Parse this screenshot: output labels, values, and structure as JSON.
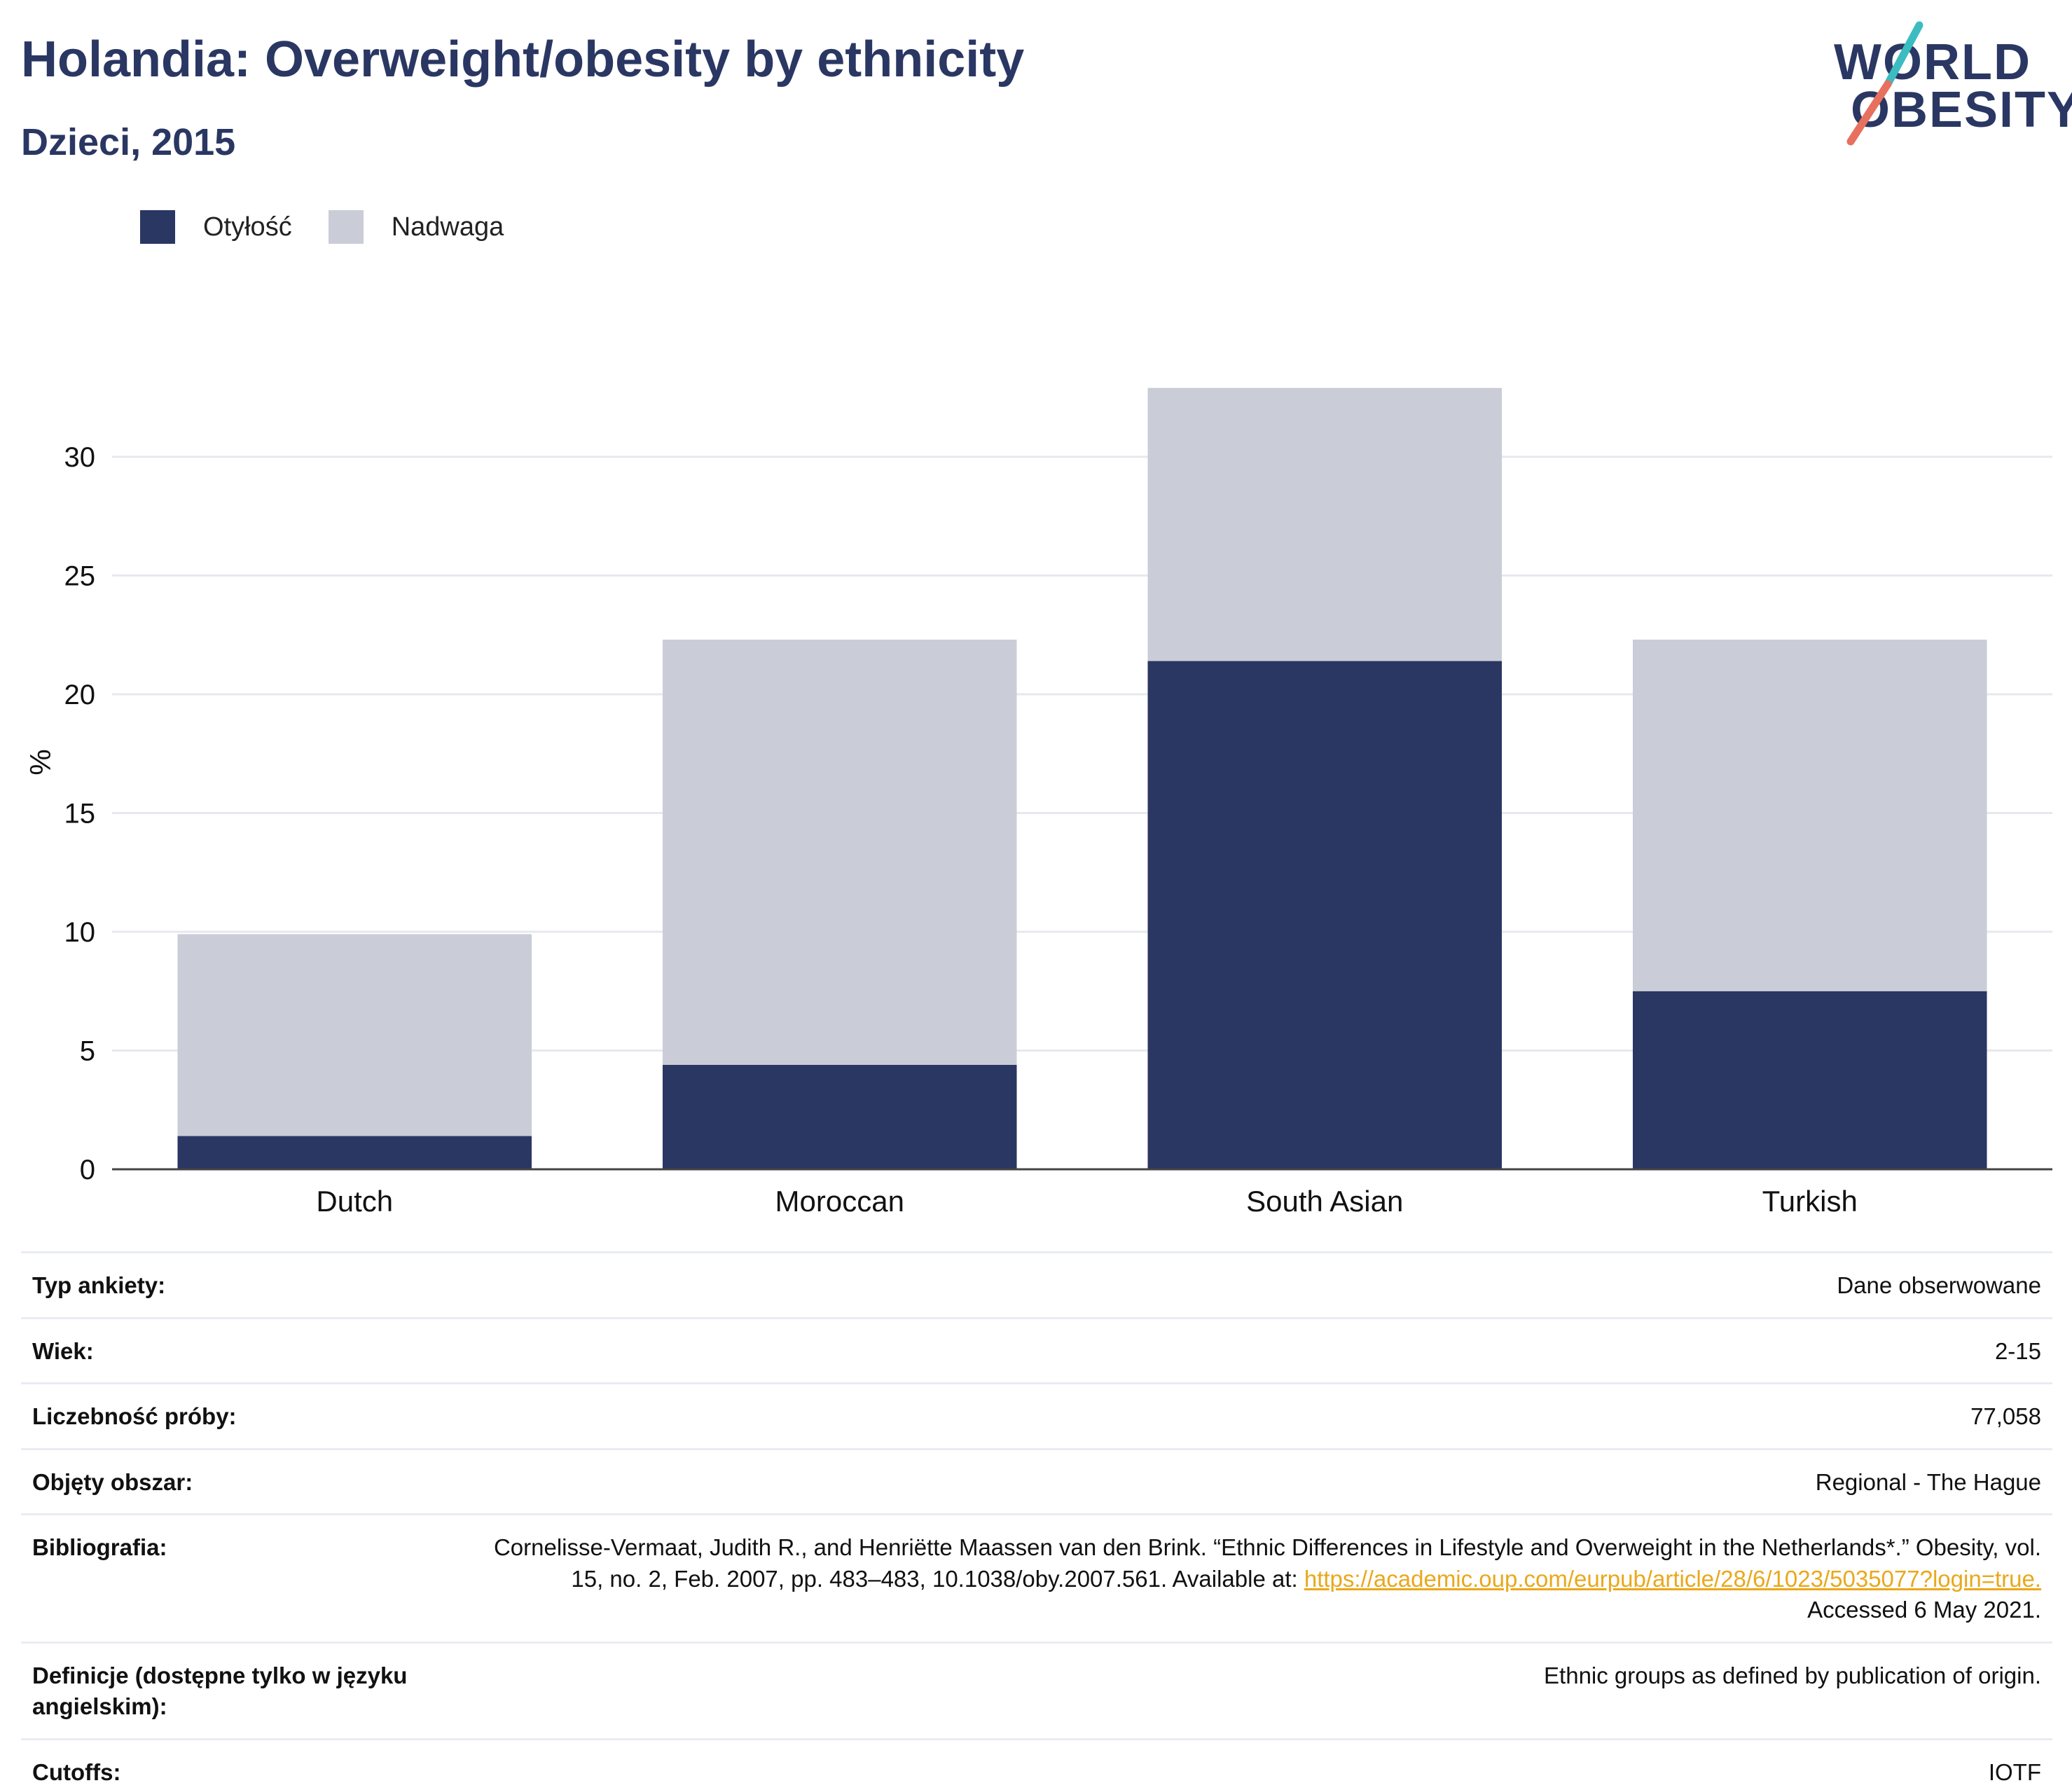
{
  "header": {
    "title": "Holandia: Overweight/obesity by ethnicity",
    "subtitle": "Dzieci, 2015"
  },
  "logo": {
    "line1": "WORLD",
    "line2": "OBESITY",
    "accent_colors": [
      "#3bbcc1",
      "#e8705f"
    ]
  },
  "legend": {
    "items": [
      {
        "label": "Otyłość",
        "color": "#2a3763"
      },
      {
        "label": "Nadwaga",
        "color": "#cacdd8"
      }
    ]
  },
  "chart_data": {
    "type": "bar",
    "stacked": true,
    "categories": [
      "Dutch",
      "Moroccan",
      "South Asian",
      "Turkish"
    ],
    "series": [
      {
        "name": "Otyłość",
        "color": "#2a3763",
        "values": [
          1.4,
          4.4,
          21.4,
          7.5
        ]
      },
      {
        "name": "Nadwaga",
        "color": "#cacdd8",
        "values": [
          8.5,
          17.9,
          11.5,
          14.8
        ]
      }
    ],
    "ylabel": "%",
    "xlabel": "",
    "ylim": [
      0,
      33
    ],
    "yticks": [
      0,
      5,
      10,
      15,
      20,
      25,
      30
    ],
    "grid": true,
    "legend_position": "top-left"
  },
  "meta": {
    "rows": [
      {
        "label": "Typ ankiety:",
        "value": "Dane obserwowane"
      },
      {
        "label": "Wiek:",
        "value": "2-15"
      },
      {
        "label": "Liczebność próby:",
        "value": "77,058"
      },
      {
        "label": "Objęty obszar:",
        "value": "Regional - The Hague"
      },
      {
        "label": "Bibliografia:",
        "value": "Cornelisse-Vermaat, Judith R., and Henriëtte Maassen van den Brink. “Ethnic Differences in Lifestyle and Overweight in the Netherlands*.” Obesity, vol. 15, no. 2, Feb. 2007, pp. 483–483, 10.1038/oby.2007.561. Available at:",
        "link": "https://academic.oup.com/eurpub/article/28/6/1023/5035077?login=true.",
        "suffix": " Accessed 6 May 2021."
      },
      {
        "label": "Definicje (dostępne tylko w języku angielskim):",
        "value": "Ethnic groups as defined by publication of origin."
      },
      {
        "label": "Cutoffs:",
        "value": "IOTF"
      }
    ]
  }
}
